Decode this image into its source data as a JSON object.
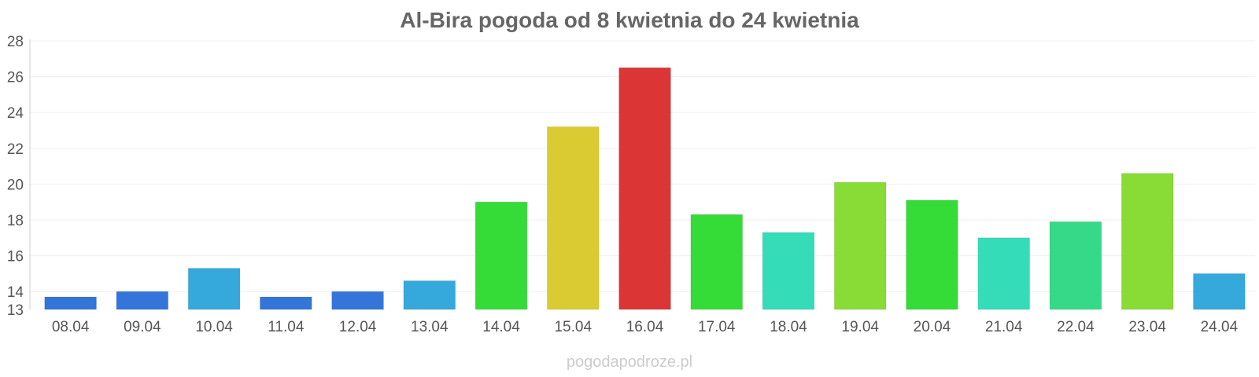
{
  "chart_data": {
    "type": "bar",
    "title": "Al-Bira pogoda od 8 kwietnia do 24 kwietnia",
    "categories": [
      "08.04",
      "09.04",
      "10.04",
      "11.04",
      "12.04",
      "13.04",
      "14.04",
      "15.04",
      "16.04",
      "17.04",
      "18.04",
      "19.04",
      "20.04",
      "21.04",
      "22.04",
      "23.04",
      "24.04"
    ],
    "values": [
      13.7,
      14.0,
      15.3,
      13.7,
      14.0,
      14.6,
      19.0,
      23.2,
      26.5,
      18.3,
      17.3,
      20.1,
      19.1,
      17.0,
      17.9,
      20.6,
      15.0
    ],
    "colors": [
      "#3375d9",
      "#3375d9",
      "#35a8dc",
      "#3375d9",
      "#3375d9",
      "#35a8dc",
      "#35dc38",
      "#dacb32",
      "#db3535",
      "#35dc38",
      "#35dcb8",
      "#88dc35",
      "#35dc38",
      "#35dcb8",
      "#35d988",
      "#88dc35",
      "#35a8dc"
    ],
    "yticks": [
      13,
      14,
      16,
      18,
      20,
      22,
      24,
      26,
      28
    ],
    "ylim": [
      13,
      28
    ],
    "grid": true,
    "legend": "none"
  },
  "watermark": "pogodapodroze.pl"
}
